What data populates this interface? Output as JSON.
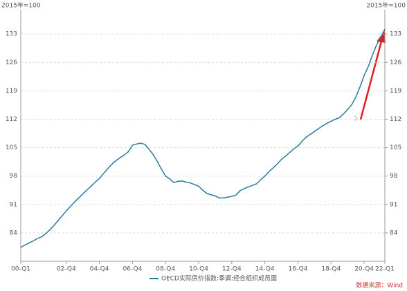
{
  "chart_data": {
    "type": "line",
    "y_label": "2015年=100",
    "y2_label": "2015年=100",
    "source": "数据来源：Wind",
    "categories": [
      "00-Q1",
      null,
      null,
      null,
      null,
      null,
      null,
      null,
      null,
      null,
      null,
      "02-Q4",
      null,
      null,
      null,
      null,
      null,
      null,
      null,
      "04-Q4",
      null,
      null,
      null,
      null,
      null,
      null,
      null,
      "06-Q4",
      null,
      null,
      null,
      null,
      null,
      null,
      null,
      "08-Q4",
      null,
      null,
      null,
      null,
      null,
      null,
      null,
      "10-Q4",
      null,
      null,
      null,
      null,
      null,
      null,
      null,
      "12-Q4",
      null,
      null,
      null,
      null,
      null,
      null,
      null,
      "14-Q4",
      null,
      null,
      null,
      null,
      null,
      null,
      null,
      "16-Q4",
      null,
      null,
      null,
      null,
      null,
      null,
      null,
      "18-Q4",
      null,
      null,
      null,
      null,
      null,
      null,
      null,
      "20-Q4",
      null,
      null,
      null,
      null,
      "22-Q1"
    ],
    "series": [
      {
        "name": "OECD实际房价指数:季调:经合组织成员国",
        "color": "#2a7a9b",
        "values": [
          80.4,
          81,
          81.5,
          82,
          82.6,
          83,
          83.8,
          84.7,
          85.8,
          87,
          88.2,
          89.4,
          90.5,
          91.6,
          92.6,
          93.6,
          94.6,
          95.5,
          96.5,
          97.4,
          98.6,
          99.8,
          100.9,
          101.8,
          102.5,
          103.2,
          104,
          105.6,
          105.9,
          106.1,
          105.8,
          104.6,
          103.3,
          101.6,
          99.7,
          98,
          97.3,
          96.4,
          96.7,
          96.8,
          96.5,
          96.3,
          95.9,
          95.5,
          94.5,
          93.7,
          93.4,
          93.1,
          92.6,
          92.6,
          92.8,
          93,
          93.3,
          94.4,
          94.9,
          95.3,
          95.7,
          96.1,
          97.1,
          98,
          99.1,
          100,
          101,
          102.1,
          102.9,
          103.8,
          104.7,
          105.4,
          106.6,
          107.6,
          108.3,
          109,
          109.7,
          110.4,
          111,
          111.5,
          112,
          112.4,
          113.3,
          114.4,
          115.6,
          117.5,
          120,
          122.8,
          125,
          127.8,
          130.3,
          132.2,
          134.2
        ]
      }
    ],
    "ylim": [
      77,
      139
    ],
    "yticks": [
      84,
      91,
      98,
      105,
      112,
      119,
      126,
      133
    ],
    "y2lim": [
      77,
      139
    ],
    "y2ticks": [
      84,
      91,
      98,
      105,
      112,
      119,
      126,
      133
    ],
    "grid": true
  }
}
